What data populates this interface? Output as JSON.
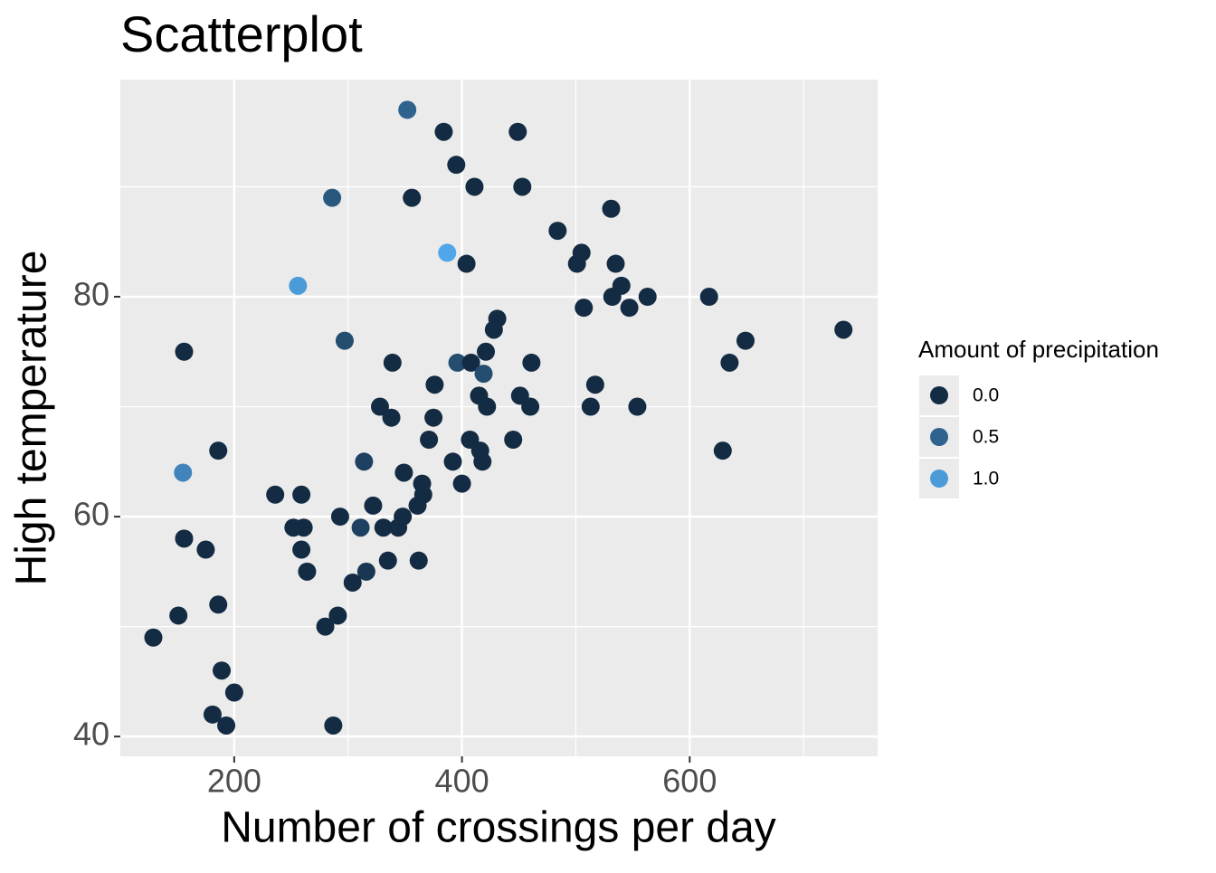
{
  "chart_data": {
    "type": "scatter",
    "title": "Scatterplot",
    "x_label": "Number of crossings per day",
    "y_label": "High temperature",
    "legend_title": "Amount of precipitation",
    "legend_position": "right",
    "grid": true,
    "xlim": [
      100,
      765
    ],
    "ylim": [
      38.2,
      99.75
    ],
    "xticks": [
      200,
      400,
      600
    ],
    "yticks": [
      40,
      60,
      80
    ],
    "xminor": [
      300,
      500,
      700
    ],
    "yminor": [
      50,
      70,
      90
    ],
    "color_scale": {
      "low": "#132B43",
      "high": "#56B1F7",
      "limits": [
        0,
        1.2
      ],
      "breaks": [
        {
          "value": 0,
          "label": "0.0"
        },
        {
          "value": 0.5,
          "label": "0.5"
        },
        {
          "value": 1,
          "label": "1.0"
        }
      ]
    },
    "x": [
      352,
      384,
      449,
      395,
      411,
      453,
      286,
      356,
      531,
      484,
      505,
      387,
      404,
      501,
      535,
      256,
      540,
      532,
      563,
      617,
      507,
      547,
      431,
      428,
      735,
      297,
      649,
      156,
      421,
      339,
      396,
      408,
      461,
      635,
      419,
      376,
      517,
      328,
      415,
      451,
      422,
      460,
      513,
      554,
      338,
      375,
      371,
      407,
      445,
      186,
      416,
      629,
      314,
      392,
      418,
      155,
      349,
      400,
      365,
      236,
      259,
      366,
      322,
      361,
      293,
      348,
      252,
      261,
      311,
      331,
      344,
      156,
      175,
      259,
      335,
      362,
      264,
      316,
      304,
      186,
      151,
      291,
      280,
      129,
      189,
      200,
      181,
      193,
      287
    ],
    "y": [
      97,
      95,
      95,
      92,
      90,
      90,
      89,
      89,
      88,
      86,
      84,
      84,
      83,
      83,
      83,
      81,
      81,
      80,
      80,
      80,
      79,
      79,
      78,
      77,
      77,
      76,
      76,
      75,
      75,
      74,
      74,
      74,
      74,
      74,
      73,
      72,
      72,
      70,
      71,
      71,
      70,
      70,
      70,
      70,
      69,
      69,
      67,
      67,
      67,
      66,
      66,
      66,
      65,
      65,
      65,
      64,
      64,
      63,
      63,
      62,
      62,
      62,
      61,
      61,
      60,
      60,
      59,
      59,
      59,
      59,
      59,
      58,
      57,
      57,
      56,
      56,
      55,
      55,
      54,
      52,
      51,
      51,
      50,
      49,
      46,
      44,
      42,
      41,
      41
    ],
    "precipitation": [
      0.5,
      0,
      0,
      0,
      0,
      0,
      0.4,
      0,
      0,
      0,
      0,
      1.1,
      0,
      0,
      0,
      1,
      0,
      0,
      0,
      0,
      0,
      0,
      0,
      0,
      0,
      0.3,
      0,
      0,
      0,
      0,
      0.3,
      0,
      0,
      0,
      0.3,
      0,
      0,
      0,
      0,
      0,
      0,
      0,
      0,
      0,
      0,
      0,
      0,
      0,
      0,
      0,
      0,
      0,
      0.2,
      0,
      0,
      0.8,
      0,
      0,
      0,
      0,
      0,
      0,
      0,
      0,
      0,
      0,
      0,
      0,
      0.2,
      0,
      0,
      0,
      0,
      0,
      0,
      0,
      0,
      0.1,
      0,
      0,
      0,
      0,
      0,
      0,
      0,
      0,
      0,
      0,
      0
    ]
  }
}
